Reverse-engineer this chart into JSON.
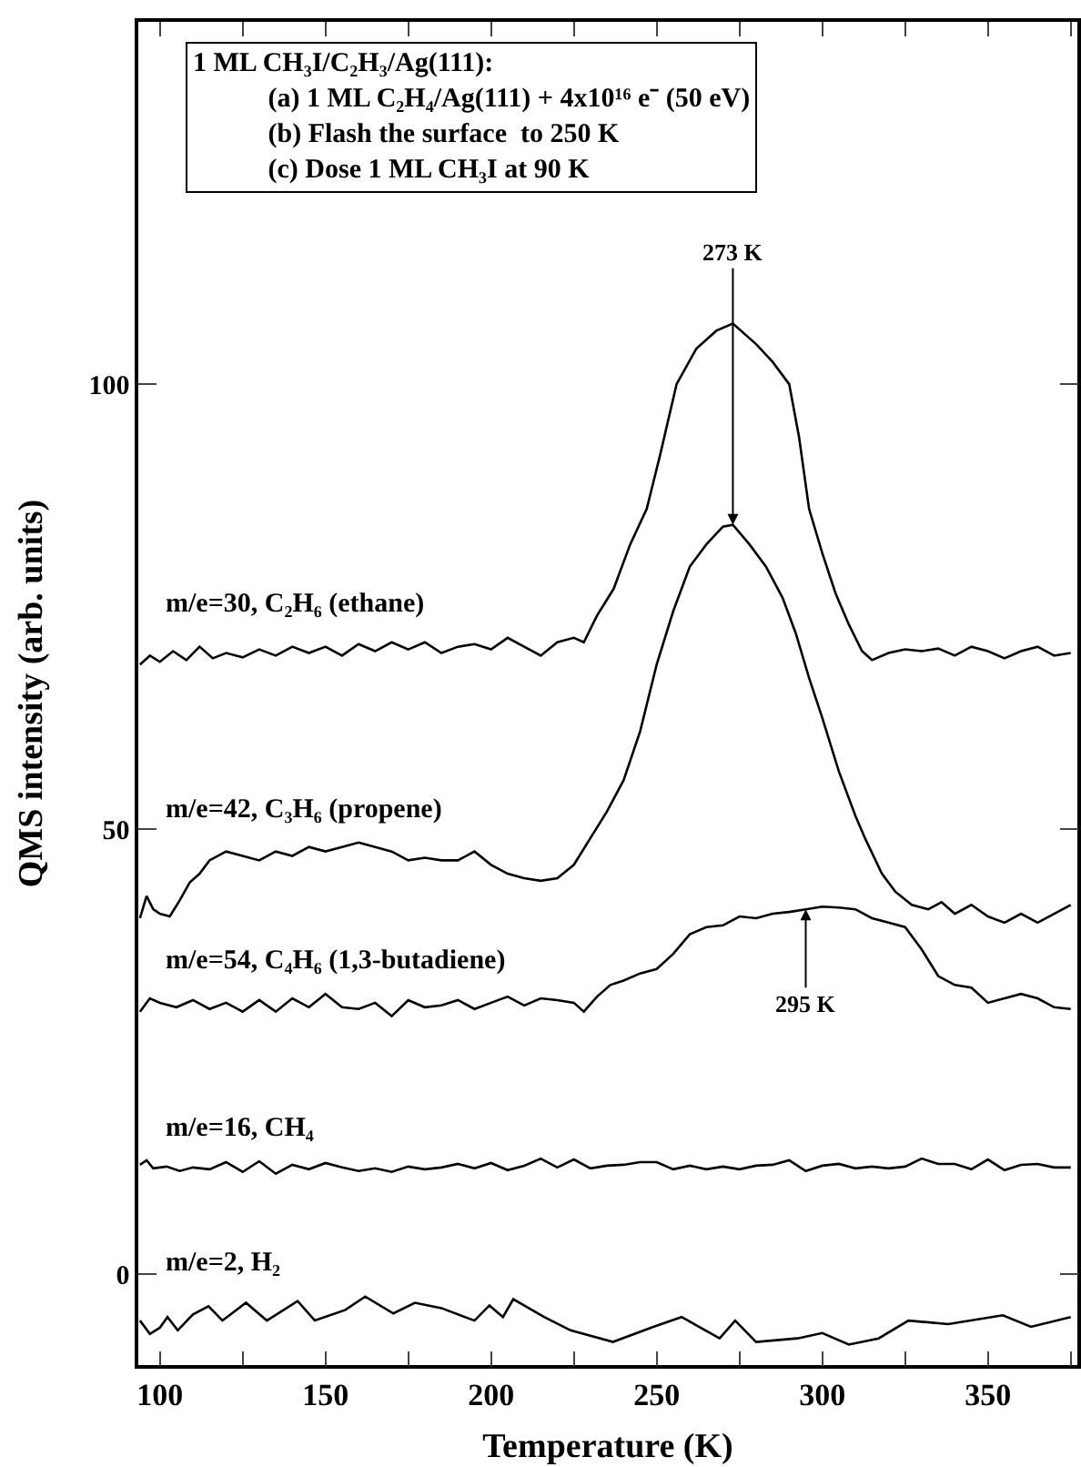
{
  "chart_data": {
    "type": "line",
    "xlabel": "Temperature (K)",
    "ylabel": "QMS intensity (arb. units)",
    "xlim": [
      93.5,
      377
    ],
    "ylim": [
      -10.2,
      140.7
    ],
    "xticks": [
      100,
      {
        "value": 125,
        "label": null
      },
      150,
      {
        "value": 175,
        "label": null
      },
      200,
      {
        "value": 225,
        "label": null
      },
      250,
      {
        "value": 275,
        "label": null
      },
      300,
      {
        "value": 325,
        "label": null
      },
      350,
      {
        "value": 375,
        "label": null
      }
    ],
    "yticks": [
      0,
      50,
      100
    ],
    "grid": false,
    "legend": false,
    "marker": "none",
    "line_style": "solid",
    "series": [
      {
        "name": "m/e=30, C₂H₆ (ethane)",
        "color": "#000000",
        "x": [
          94,
          97,
          100,
          104,
          108,
          112,
          116,
          120,
          125,
          130,
          135,
          140,
          145,
          150,
          155,
          160,
          165,
          170,
          175,
          180,
          185,
          190,
          195,
          200,
          205,
          210,
          215,
          220,
          225,
          228,
          232,
          237,
          242,
          247,
          251,
          256,
          262,
          268,
          273,
          280,
          285,
          290,
          293,
          296,
          300,
          304,
          308,
          312,
          315,
          320,
          325,
          330,
          335,
          340,
          345,
          350,
          355,
          360,
          365,
          370,
          375
        ],
        "values": [
          68.5,
          69.5,
          68.8,
          70,
          69,
          70.5,
          69.2,
          69.8,
          69.3,
          70.2,
          69.5,
          70.5,
          69.8,
          70.5,
          69.5,
          70.8,
          70,
          71,
          70.2,
          71,
          69.8,
          70.5,
          70.8,
          70.2,
          71.5,
          70.5,
          69.5,
          71,
          71.5,
          71,
          74,
          77,
          82,
          86,
          92,
          100,
          104,
          106,
          106.8,
          104.5,
          102.5,
          100,
          94,
          86,
          81,
          76.5,
          73,
          70,
          69,
          69.8,
          70.2,
          70,
          70.3,
          69.5,
          70.5,
          70,
          69.2,
          70,
          70.5,
          69.5,
          69.8
        ]
      },
      {
        "name": "m/e=42, C₃H₆ (propene)",
        "color": "#000000",
        "x": [
          94,
          96,
          98,
          100,
          103,
          106,
          109,
          112,
          115,
          120,
          125,
          130,
          135,
          140,
          145,
          150,
          155,
          160,
          165,
          170,
          175,
          180,
          185,
          190,
          195,
          200,
          205,
          210,
          215,
          220,
          225,
          230,
          235,
          240,
          245,
          250,
          255,
          260,
          265,
          270,
          273,
          278,
          283,
          288,
          292,
          296,
          300,
          305,
          310,
          313,
          318,
          322,
          327,
          332,
          336,
          340,
          345,
          350,
          355,
          360,
          365,
          370,
          375
        ],
        "values": [
          40,
          42.5,
          41,
          40.5,
          40.2,
          42,
          44,
          45,
          46.5,
          47.5,
          47,
          46.5,
          47.5,
          47,
          48,
          47.5,
          48,
          48.5,
          48,
          47.5,
          46.5,
          46.8,
          46.5,
          46.5,
          47.5,
          46,
          45,
          44.5,
          44.2,
          44.5,
          46,
          49,
          52,
          55.5,
          61,
          68.5,
          74.5,
          79.5,
          82,
          84,
          84.2,
          82,
          79.5,
          76,
          72,
          67,
          62.5,
          56.5,
          51.5,
          48.9,
          45,
          43,
          41.5,
          41,
          41.8,
          40.5,
          41.5,
          40.2,
          39.5,
          40.5,
          39.5,
          40.5,
          41.5
        ]
      },
      {
        "name": "m/e=54, C₄H₆ (1,3-butadiene)",
        "color": "#000000",
        "x": [
          94,
          97,
          100,
          105,
          110,
          115,
          120,
          125,
          130,
          135,
          140,
          145,
          150,
          155,
          160,
          165,
          170,
          175,
          180,
          185,
          190,
          195,
          200,
          205,
          210,
          215,
          220,
          225,
          228,
          232,
          236,
          240,
          245,
          250,
          255,
          260,
          265,
          270,
          275,
          280,
          285,
          290,
          295,
          300,
          305,
          310,
          315,
          320,
          325,
          330,
          335,
          340,
          345,
          350,
          355,
          360,
          365,
          370,
          375
        ],
        "values": [
          29.5,
          31,
          30.5,
          30,
          30.8,
          29.8,
          30.5,
          29.5,
          30.8,
          29.5,
          31,
          30,
          31.5,
          30,
          29.8,
          30.5,
          29,
          30.8,
          30,
          30.2,
          30.8,
          29.8,
          30.5,
          31.2,
          30.2,
          31,
          30.8,
          30.5,
          29.5,
          31.2,
          32.5,
          33,
          33.8,
          34.3,
          36,
          38.2,
          39,
          39.2,
          40.2,
          40,
          40.5,
          40.7,
          41,
          41.3,
          41.2,
          41,
          40,
          39.5,
          39,
          36.5,
          33.5,
          32.5,
          32.2,
          30.5,
          31,
          31.5,
          31,
          30,
          29.8
        ]
      },
      {
        "name": "m/e=16, CH₄",
        "color": "#000000",
        "x": [
          94,
          96,
          98,
          102,
          106,
          110,
          115,
          120,
          125,
          130,
          135,
          140,
          145,
          150,
          155,
          160,
          165,
          170,
          175,
          180,
          185,
          190,
          195,
          200,
          205,
          210,
          215,
          220,
          225,
          230,
          235,
          240,
          245,
          250,
          255,
          260,
          265,
          270,
          275,
          280,
          285,
          290,
          295,
          300,
          305,
          310,
          315,
          320,
          325,
          330,
          335,
          340,
          345,
          350,
          355,
          360,
          365,
          370,
          375
        ],
        "values": [
          12.3,
          12.8,
          11.9,
          12.1,
          11.6,
          12,
          11.8,
          12.6,
          11.5,
          12.7,
          11.3,
          12.3,
          11.8,
          12.5,
          12,
          11.6,
          11.9,
          11.5,
          12.1,
          11.8,
          12,
          12.4,
          11.9,
          12.5,
          11.7,
          12.2,
          13,
          12,
          12.9,
          11.9,
          12.2,
          12.3,
          12.6,
          12.6,
          11.8,
          12.2,
          11.8,
          12.1,
          11.8,
          12.2,
          12.3,
          12.8,
          11.6,
          12.2,
          12.4,
          11.9,
          12.1,
          11.9,
          12.1,
          13,
          12.4,
          12.4,
          11.8,
          12.9,
          11.7,
          12.3,
          12.4,
          12,
          12
        ]
      },
      {
        "name": "m/e=2, H₂",
        "color": "#000000",
        "x": [
          94,
          97,
          100,
          102.3,
          105.4,
          110,
          114.7,
          118.9,
          126,
          132.3,
          141.6,
          146.8,
          156,
          162,
          170.5,
          177,
          185,
          195,
          199.5,
          203.6,
          206.7,
          216,
          224,
          236.8,
          249,
          257.5,
          269,
          273.7,
          280,
          292.5,
          300,
          308,
          317,
          326,
          338,
          354.5,
          363,
          375
        ],
        "values": [
          -5.2,
          -6.7,
          -6,
          -4.8,
          -6.3,
          -4.5,
          -3.6,
          -5.2,
          -3.2,
          -5.2,
          -3,
          -5.2,
          -4,
          -2.5,
          -4.4,
          -3.2,
          -3.8,
          -5.2,
          -3.5,
          -4.8,
          -2.8,
          -4.8,
          -6.3,
          -7.6,
          -5.9,
          -4.8,
          -7.2,
          -5.2,
          -7.6,
          -7.2,
          -6.6,
          -7.9,
          -7.2,
          -5.2,
          -5.6,
          -4.6,
          -5.9,
          -4.8
        ]
      }
    ],
    "annotations": [
      "1 ML CH₃I/C₂H₃/Ag(111):",
      "(a) 1 ML C₂H₄/Ag(111) + 4x10¹⁶ e⁻ (50 eV)",
      "(b) Flash the surface  to 250 K",
      "(c) Dose 1 ML CH₃I at 90 K",
      {
        "text": "273 K",
        "x": 273,
        "y": 84.2
      },
      {
        "text": "295 K",
        "x": 295,
        "y": 41
      }
    ]
  }
}
